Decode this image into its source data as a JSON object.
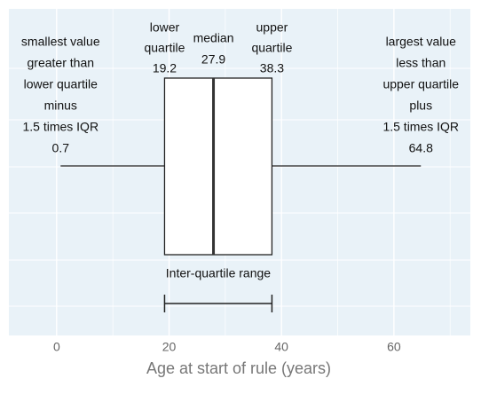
{
  "chart_data": {
    "type": "box",
    "xlabel": "Age at start of rule (years)",
    "xlim": [
      -8.5,
      73.6
    ],
    "xticks": [
      0,
      20,
      40,
      60
    ],
    "grid": true,
    "box": {
      "whislo": 0.7,
      "q1": 19.2,
      "med": 27.9,
      "q3": 38.3,
      "whishi": 64.8
    },
    "annotations": {
      "whislo": [
        "smallest value",
        "greater than",
        "lower quartile",
        "minus",
        "1.5 times IQR"
      ],
      "q1": [
        "lower",
        "quartile"
      ],
      "med": [
        "median"
      ],
      "q3": [
        "upper",
        "quartile"
      ],
      "whishi": [
        "largest value",
        "less than",
        "upper quartile",
        "plus",
        "1.5 times IQR"
      ],
      "iqr": "Inter-quartile range"
    }
  }
}
